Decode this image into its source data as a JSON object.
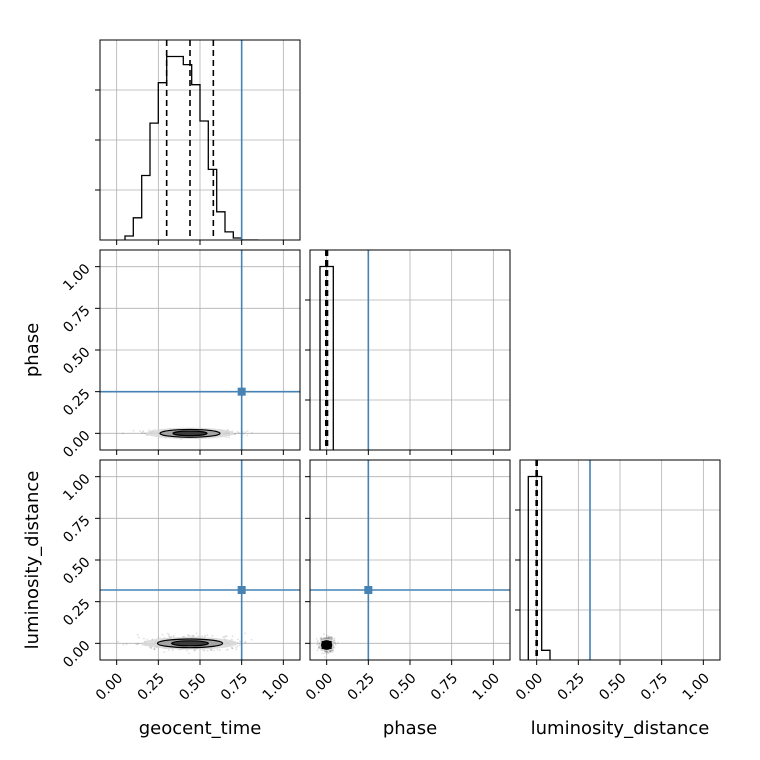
{
  "chart_data": {
    "type": "corner",
    "parameters": [
      "geocent_time",
      "phase",
      "luminosity_distance"
    ],
    "truths": {
      "geocent_time": 0.75,
      "phase": 0.25,
      "luminosity_distance": 0.32
    },
    "truth_color": "#4682b4",
    "axis_range": [
      -0.1,
      1.1
    ],
    "ticks": [
      0.0,
      0.25,
      0.5,
      0.75,
      1.0
    ],
    "tick_labels": [
      "0.00",
      "0.25",
      "0.50",
      "0.75",
      "1.00"
    ],
    "grid": true,
    "diagonal": [
      {
        "parameter": "geocent_time",
        "bin_edges": [
          0.05,
          0.1,
          0.15,
          0.2,
          0.25,
          0.3,
          0.35,
          0.4,
          0.45,
          0.5,
          0.55,
          0.6,
          0.65,
          0.7,
          0.75,
          0.8,
          0.85
        ],
        "counts": [
          0.02,
          0.11,
          0.32,
          0.58,
          0.78,
          0.91,
          0.91,
          0.87,
          0.77,
          0.59,
          0.35,
          0.14,
          0.04,
          0.01,
          0,
          0
        ],
        "quantiles": [
          0.3,
          0.44,
          0.58
        ]
      },
      {
        "parameter": "phase",
        "bin_edges": [
          -0.04,
          0.0,
          0.04
        ],
        "counts": [
          1.0,
          1.0
        ],
        "quantiles": [
          -0.005,
          0.0,
          0.005
        ]
      },
      {
        "parameter": "luminosity_distance",
        "bin_edges": [
          -0.05,
          0.0,
          0.03,
          0.08
        ],
        "counts": [
          0.95,
          0.95,
          0.05
        ],
        "quantiles": [
          -0.003,
          0.0,
          0.003
        ]
      }
    ],
    "joint": [
      {
        "x": "geocent_time",
        "y": "phase",
        "center": [
          0.44,
          0.0
        ],
        "spread": [
          0.12,
          0.01
        ]
      },
      {
        "x": "geocent_time",
        "y": "luminosity_distance",
        "center": [
          0.44,
          0.0
        ],
        "spread": [
          0.13,
          0.02
        ]
      },
      {
        "x": "phase",
        "y": "luminosity_distance",
        "center": [
          0.0,
          -0.01
        ],
        "spread": [
          0.02,
          0.02
        ]
      }
    ]
  }
}
